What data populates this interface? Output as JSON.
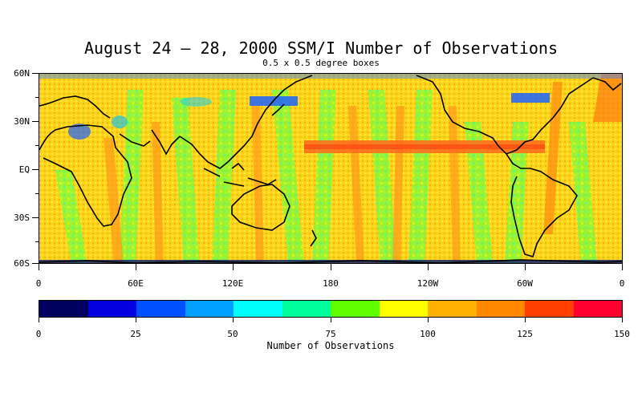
{
  "header": {
    "title": "August 24 – 28, 2000 SSM/I Number of Observations",
    "subtitle": "0.5 x 0.5 degree boxes"
  },
  "map": {
    "lat_labels": [
      "60N",
      "30N",
      "EQ",
      "30S",
      "60S"
    ],
    "lon_labels": [
      "0",
      "60E",
      "120E",
      "180",
      "120W",
      "60W",
      "0"
    ],
    "background_color": "#ffd21e"
  },
  "colorbar": {
    "title": "Number of Observations",
    "colors": [
      "#000060",
      "#0000e0",
      "#0050ff",
      "#00a0ff",
      "#00ffff",
      "#00ff9a",
      "#60ff00",
      "#ffff00",
      "#ffb000",
      "#ff8800",
      "#ff4000",
      "#ff0030"
    ],
    "tick_labels": [
      "0",
      "25",
      "50",
      "75",
      "100",
      "125",
      "150"
    ]
  }
}
